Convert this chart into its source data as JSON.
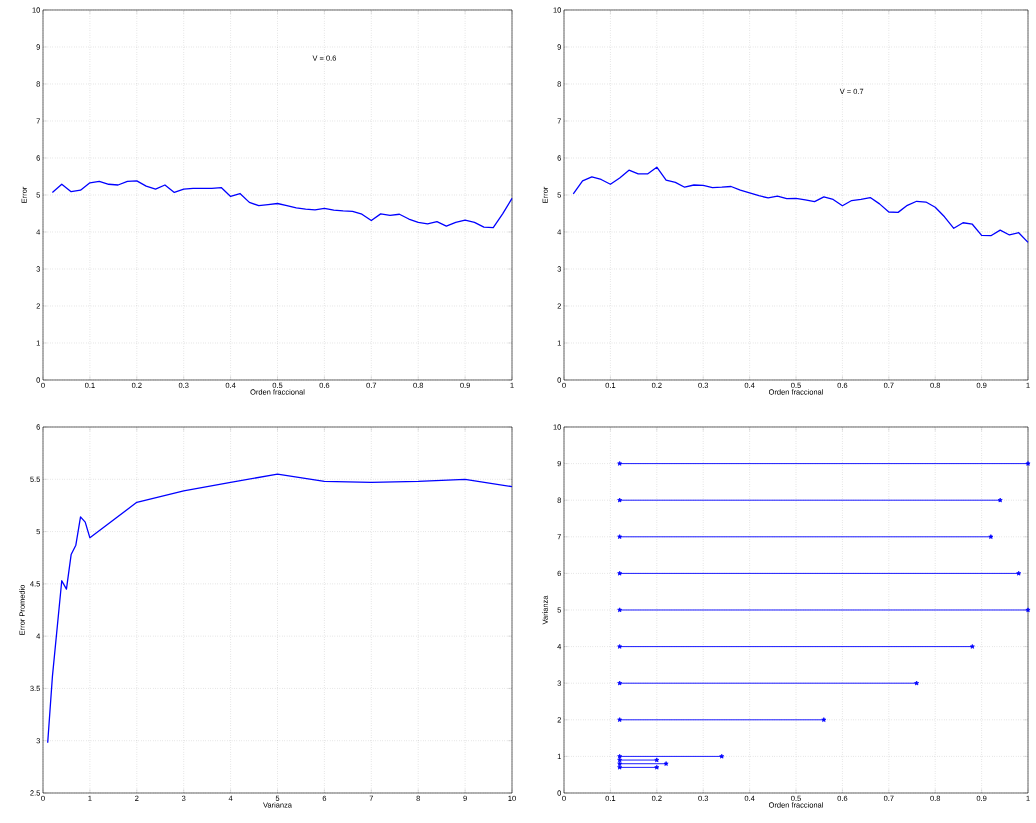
{
  "chart_data": [
    {
      "type": "line",
      "xlabel": "Orden fraccional",
      "ylabel": "Error",
      "annotations": [
        "V = 0.6"
      ],
      "grid": true,
      "xlim": [
        0,
        1
      ],
      "xticks": [
        0,
        0.1,
        0.2,
        0.3,
        0.4,
        0.5,
        0.6,
        0.7,
        0.8,
        0.9,
        1
      ],
      "ylim": [
        0,
        10
      ],
      "yticks": [
        0,
        1,
        2,
        3,
        4,
        5,
        6,
        7,
        8,
        9,
        10
      ],
      "color": "#0000ff",
      "x": [
        0.02,
        0.04,
        0.06,
        0.08,
        0.1,
        0.12,
        0.14,
        0.16,
        0.18,
        0.2,
        0.22,
        0.24,
        0.26,
        0.28,
        0.3,
        0.32,
        0.34,
        0.36,
        0.38,
        0.4,
        0.42,
        0.44,
        0.46,
        0.48,
        0.5,
        0.52,
        0.54,
        0.56,
        0.58,
        0.6,
        0.62,
        0.64,
        0.66,
        0.68,
        0.7,
        0.72,
        0.74,
        0.76,
        0.78,
        0.8,
        0.82,
        0.84,
        0.86,
        0.88,
        0.9,
        0.92,
        0.94,
        0.96,
        0.98,
        1.0
      ],
      "values": [
        5.07,
        5.29,
        5.09,
        5.13,
        5.33,
        5.37,
        5.29,
        5.27,
        5.37,
        5.38,
        5.24,
        5.16,
        5.27,
        5.07,
        5.16,
        5.18,
        5.18,
        5.18,
        5.2,
        4.96,
        5.04,
        4.8,
        4.71,
        4.74,
        4.77,
        4.71,
        4.65,
        4.62,
        4.6,
        4.64,
        4.59,
        4.57,
        4.56,
        4.48,
        4.31,
        4.49,
        4.45,
        4.48,
        4.35,
        4.26,
        4.22,
        4.28,
        4.16,
        4.26,
        4.32,
        4.26,
        4.13,
        4.12,
        4.49,
        4.91
      ]
    },
    {
      "type": "line",
      "xlabel": "Orden fraccional",
      "annotations": [
        "V = 0.7"
      ],
      "ylabel": "Error",
      "grid": true,
      "xlim": [
        0,
        1
      ],
      "xticks": [
        0,
        0.1,
        0.2,
        0.3,
        0.4,
        0.5,
        0.6,
        0.7,
        0.8,
        0.9,
        1
      ],
      "ylim": [
        0,
        10
      ],
      "yticks": [
        0,
        1,
        2,
        3,
        4,
        5,
        6,
        7,
        8,
        9,
        10
      ],
      "color": "#0000ff",
      "x": [
        0.02,
        0.04,
        0.06,
        0.08,
        0.1,
        0.12,
        0.14,
        0.16,
        0.18,
        0.2,
        0.22,
        0.24,
        0.26,
        0.28,
        0.3,
        0.32,
        0.34,
        0.36,
        0.38,
        0.4,
        0.42,
        0.44,
        0.46,
        0.48,
        0.5,
        0.52,
        0.54,
        0.56,
        0.58,
        0.6,
        0.62,
        0.64,
        0.66,
        0.68,
        0.7,
        0.72,
        0.74,
        0.76,
        0.78,
        0.8,
        0.82,
        0.84,
        0.86,
        0.88,
        0.9,
        0.92,
        0.94,
        0.96,
        0.98,
        1.0
      ],
      "values": [
        5.03,
        5.38,
        5.49,
        5.42,
        5.29,
        5.46,
        5.67,
        5.57,
        5.57,
        5.75,
        5.4,
        5.34,
        5.21,
        5.27,
        5.26,
        5.2,
        5.21,
        5.23,
        5.13,
        5.06,
        4.98,
        4.92,
        4.97,
        4.9,
        4.91,
        4.87,
        4.82,
        4.95,
        4.88,
        4.71,
        4.85,
        4.88,
        4.93,
        4.76,
        4.54,
        4.53,
        4.72,
        4.83,
        4.81,
        4.67,
        4.41,
        4.1,
        4.25,
        4.21,
        3.91,
        3.9,
        4.05,
        3.92,
        3.98,
        3.72
      ]
    },
    {
      "type": "line",
      "xlabel": "Varianza",
      "ylabel": "Error Promedio",
      "grid": true,
      "xlim": [
        0,
        10
      ],
      "xticks": [
        0,
        1,
        2,
        3,
        4,
        5,
        6,
        7,
        8,
        9,
        10
      ],
      "ylim": [
        2.5,
        6
      ],
      "yticks": [
        2.5,
        3,
        3.5,
        4,
        4.5,
        5,
        5.5,
        6
      ],
      "color": "#0000ff",
      "x": [
        0.1,
        0.2,
        0.4,
        0.5,
        0.6,
        0.7,
        0.8,
        0.9,
        1,
        2,
        3,
        4,
        5,
        6,
        7,
        8,
        9,
        10
      ],
      "values": [
        2.98,
        3.61,
        4.53,
        4.45,
        4.78,
        4.87,
        5.14,
        5.09,
        4.94,
        5.28,
        5.39,
        5.47,
        5.55,
        5.48,
        5.47,
        5.48,
        5.5,
        5.43
      ]
    },
    {
      "type": "line",
      "xlabel": "Orden fraccional",
      "ylabel": "Varianza",
      "grid": true,
      "marker": "star",
      "xlim": [
        0,
        1
      ],
      "xticks": [
        0,
        0.1,
        0.2,
        0.3,
        0.4,
        0.5,
        0.6,
        0.7,
        0.8,
        0.9,
        1
      ],
      "ylim": [
        0,
        10
      ],
      "yticks": [
        0,
        1,
        2,
        3,
        4,
        5,
        6,
        7,
        8,
        9,
        10
      ],
      "series": [
        {
          "color": "#0000ff",
          "x": [
            0.12,
            0.2
          ],
          "values": [
            0.7,
            0.7
          ]
        },
        {
          "color": "#0000ff",
          "x": [
            0.12,
            0.22
          ],
          "values": [
            0.8,
            0.8
          ]
        },
        {
          "color": "#0000ff",
          "x": [
            0.12,
            0.2
          ],
          "values": [
            0.9,
            0.9
          ]
        },
        {
          "color": "#0000ff",
          "x": [
            0.12,
            0.34
          ],
          "values": [
            1,
            1
          ]
        },
        {
          "color": "#0000ff",
          "x": [
            0.12,
            0.56
          ],
          "values": [
            2,
            2
          ]
        },
        {
          "color": "#0000ff",
          "x": [
            0.12,
            0.76
          ],
          "values": [
            3,
            3
          ]
        },
        {
          "color": "#0000ff",
          "x": [
            0.12,
            0.88
          ],
          "values": [
            4,
            4
          ]
        },
        {
          "color": "#0000ff",
          "x": [
            0.12,
            1.0
          ],
          "values": [
            5,
            5
          ]
        },
        {
          "color": "#0000ff",
          "x": [
            0.12,
            0.98
          ],
          "values": [
            6,
            6
          ]
        },
        {
          "color": "#0000ff",
          "x": [
            0.12,
            0.92
          ],
          "values": [
            7,
            7
          ]
        },
        {
          "color": "#0000ff",
          "x": [
            0.12,
            0.94
          ],
          "values": [
            8,
            8
          ]
        },
        {
          "color": "#0000ff",
          "x": [
            0.12,
            1.0
          ],
          "values": [
            9,
            9
          ]
        }
      ]
    }
  ]
}
